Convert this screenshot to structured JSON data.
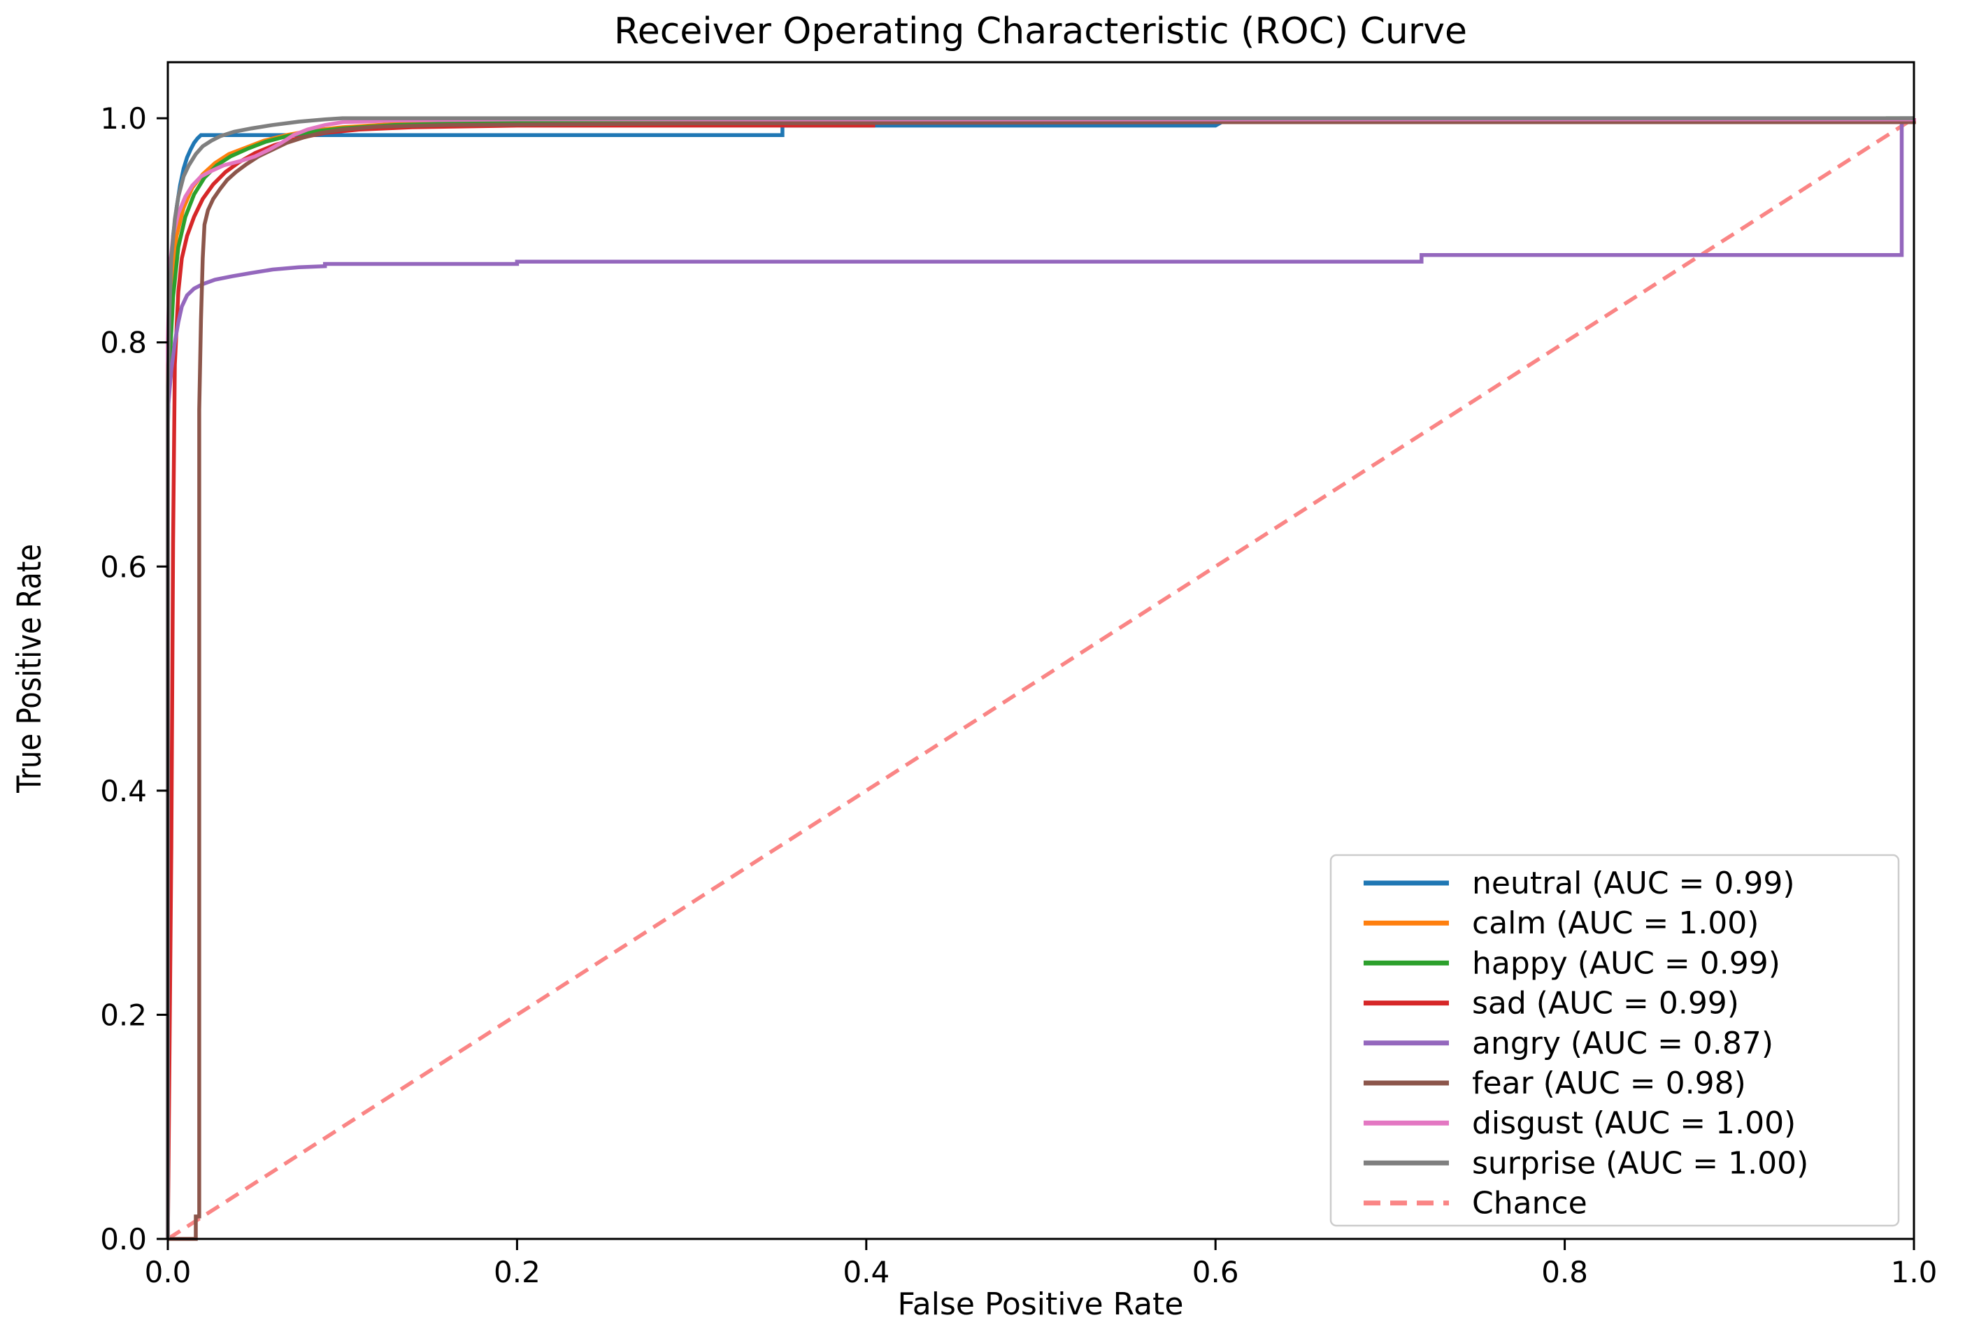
{
  "chart_data": {
    "type": "line",
    "title": "Receiver Operating Characteristic (ROC) Curve",
    "xlabel": "False Positive Rate",
    "ylabel": "True Positive Rate",
    "xlim": [
      0.0,
      1.0
    ],
    "ylim": [
      0.0,
      1.05
    ],
    "x_ticks": [
      "0.0",
      "0.2",
      "0.4",
      "0.6",
      "0.8",
      "1.0"
    ],
    "y_ticks": [
      "0.0",
      "0.2",
      "0.4",
      "0.6",
      "0.8",
      "1.0"
    ],
    "grid": false,
    "legend_position": "lower right",
    "frame_color": "#000000",
    "legend_border_color": "#cccccc",
    "series": [
      {
        "name": "neutral",
        "label": "neutral (AUC = 0.99)",
        "auc": 0.99,
        "color": "#1f77b4",
        "dash": false,
        "points": [
          [
            0,
            0
          ],
          [
            0,
            0.72
          ],
          [
            0.001,
            0.8
          ],
          [
            0.002,
            0.855
          ],
          [
            0.003,
            0.895
          ],
          [
            0.005,
            0.92
          ],
          [
            0.007,
            0.94
          ],
          [
            0.009,
            0.955
          ],
          [
            0.011,
            0.965
          ],
          [
            0.013,
            0.972
          ],
          [
            0.015,
            0.978
          ],
          [
            0.017,
            0.982
          ],
          [
            0.019,
            0.985
          ],
          [
            0.352,
            0.985
          ],
          [
            0.352,
            0.9935
          ],
          [
            0.6,
            0.9935
          ],
          [
            0.604,
            0.997
          ],
          [
            0.985,
            0.997
          ],
          [
            0.985,
            0.999
          ],
          [
            1,
            0.999
          ],
          [
            1,
            1
          ]
        ]
      },
      {
        "name": "calm",
        "label": "calm (AUC = 1.00)",
        "auc": 1.0,
        "color": "#ff7f0e",
        "dash": false,
        "points": [
          [
            0,
            0
          ],
          [
            0,
            0.78
          ],
          [
            0.002,
            0.85
          ],
          [
            0.005,
            0.895
          ],
          [
            0.009,
            0.92
          ],
          [
            0.014,
            0.938
          ],
          [
            0.02,
            0.95
          ],
          [
            0.027,
            0.96
          ],
          [
            0.035,
            0.968
          ],
          [
            0.045,
            0.974
          ],
          [
            0.055,
            0.98
          ],
          [
            0.068,
            0.985
          ],
          [
            0.082,
            0.989
          ],
          [
            0.1,
            0.992
          ],
          [
            0.13,
            0.995
          ],
          [
            0.2,
            0.9965
          ],
          [
            0.4,
            0.997
          ],
          [
            1,
            0.997
          ],
          [
            1,
            1
          ]
        ]
      },
      {
        "name": "happy",
        "label": "happy (AUC = 0.99)",
        "auc": 0.99,
        "color": "#2ca02c",
        "dash": false,
        "points": [
          [
            0,
            0
          ],
          [
            0,
            0.75
          ],
          [
            0.003,
            0.84
          ],
          [
            0.006,
            0.885
          ],
          [
            0.01,
            0.912
          ],
          [
            0.015,
            0.932
          ],
          [
            0.021,
            0.947
          ],
          [
            0.028,
            0.958
          ],
          [
            0.036,
            0.966
          ],
          [
            0.046,
            0.973
          ],
          [
            0.056,
            0.979
          ],
          [
            0.068,
            0.984
          ],
          [
            0.082,
            0.988
          ],
          [
            0.1,
            0.991
          ],
          [
            0.13,
            0.994
          ],
          [
            0.18,
            0.996
          ],
          [
            0.3,
            0.9975
          ],
          [
            0.985,
            0.9975
          ],
          [
            0.985,
            1.0
          ],
          [
            1,
            1
          ]
        ]
      },
      {
        "name": "sad",
        "label": "sad (AUC = 0.99)",
        "auc": 0.99,
        "color": "#d62728",
        "dash": false,
        "points": [
          [
            0,
            0
          ],
          [
            0.002,
            0.35
          ],
          [
            0.003,
            0.62
          ],
          [
            0.004,
            0.78
          ],
          [
            0.006,
            0.845
          ],
          [
            0.008,
            0.875
          ],
          [
            0.011,
            0.895
          ],
          [
            0.015,
            0.912
          ],
          [
            0.02,
            0.928
          ],
          [
            0.026,
            0.941
          ],
          [
            0.033,
            0.952
          ],
          [
            0.041,
            0.961
          ],
          [
            0.05,
            0.969
          ],
          [
            0.061,
            0.976
          ],
          [
            0.074,
            0.982
          ],
          [
            0.09,
            0.987
          ],
          [
            0.11,
            0.99
          ],
          [
            0.14,
            0.992
          ],
          [
            0.2,
            0.9935
          ],
          [
            0.404,
            0.9935
          ],
          [
            0.404,
            0.997
          ],
          [
            0.58,
            0.997
          ],
          [
            0.58,
            0.998
          ],
          [
            0.985,
            0.998
          ],
          [
            1,
            1
          ]
        ]
      },
      {
        "name": "angry",
        "label": "angry (AUC = 0.87)",
        "auc": 0.87,
        "color": "#9467bd",
        "dash": false,
        "points": [
          [
            0,
            0
          ],
          [
            0,
            0.74
          ],
          [
            0.002,
            0.775
          ],
          [
            0.004,
            0.8
          ],
          [
            0.006,
            0.818
          ],
          [
            0.008,
            0.832
          ],
          [
            0.011,
            0.842
          ],
          [
            0.015,
            0.848
          ],
          [
            0.02,
            0.852
          ],
          [
            0.027,
            0.856
          ],
          [
            0.037,
            0.859
          ],
          [
            0.048,
            0.862
          ],
          [
            0.06,
            0.865
          ],
          [
            0.075,
            0.867
          ],
          [
            0.09,
            0.868
          ],
          [
            0.09,
            0.87
          ],
          [
            0.2,
            0.87
          ],
          [
            0.2,
            0.872
          ],
          [
            0.718,
            0.872
          ],
          [
            0.718,
            0.878
          ],
          [
            0.993,
            0.878
          ],
          [
            0.993,
            1.0
          ],
          [
            1,
            1
          ]
        ]
      },
      {
        "name": "fear",
        "label": "fear (AUC = 0.98)",
        "auc": 0.98,
        "color": "#8c564b",
        "dash": false,
        "points": [
          [
            0,
            0
          ],
          [
            0.016,
            0
          ],
          [
            0.016,
            0.02
          ],
          [
            0.018,
            0.02
          ],
          [
            0.018,
            0.74
          ],
          [
            0.019,
            0.82
          ],
          [
            0.02,
            0.875
          ],
          [
            0.021,
            0.905
          ],
          [
            0.023,
            0.918
          ],
          [
            0.026,
            0.928
          ],
          [
            0.03,
            0.937
          ],
          [
            0.034,
            0.945
          ],
          [
            0.039,
            0.952
          ],
          [
            0.045,
            0.959
          ],
          [
            0.052,
            0.966
          ],
          [
            0.06,
            0.972
          ],
          [
            0.068,
            0.978
          ],
          [
            0.078,
            0.983
          ],
          [
            0.088,
            0.987
          ],
          [
            0.1,
            0.99
          ],
          [
            0.12,
            0.9925
          ],
          [
            0.16,
            0.994
          ],
          [
            0.3,
            0.9955
          ],
          [
            0.6,
            0.9965
          ],
          [
            1,
            0.9965
          ],
          [
            1,
            1
          ]
        ]
      },
      {
        "name": "disgust",
        "label": "disgust (AUC = 1.00)",
        "auc": 1.0,
        "color": "#e377c2",
        "dash": false,
        "points": [
          [
            0,
            0
          ],
          [
            0,
            0.8
          ],
          [
            0.001,
            0.865
          ],
          [
            0.003,
            0.895
          ],
          [
            0.006,
            0.915
          ],
          [
            0.01,
            0.93
          ],
          [
            0.014,
            0.94
          ],
          [
            0.019,
            0.948
          ],
          [
            0.025,
            0.953
          ],
          [
            0.032,
            0.958
          ],
          [
            0.042,
            0.962
          ],
          [
            0.05,
            0.966
          ],
          [
            0.058,
            0.972
          ],
          [
            0.065,
            0.978
          ],
          [
            0.072,
            0.985
          ],
          [
            0.08,
            0.99
          ],
          [
            0.09,
            0.994
          ],
          [
            0.1,
            0.9965
          ],
          [
            0.13,
            0.998
          ],
          [
            0.2,
            0.999
          ],
          [
            1,
            0.999
          ],
          [
            1,
            1
          ]
        ]
      },
      {
        "name": "surprise",
        "label": "surprise (AUC = 1.00)",
        "auc": 1.0,
        "color": "#7f7f7f",
        "dash": false,
        "points": [
          [
            0,
            0
          ],
          [
            0,
            0.76
          ],
          [
            0.001,
            0.83
          ],
          [
            0.002,
            0.875
          ],
          [
            0.004,
            0.91
          ],
          [
            0.006,
            0.93
          ],
          [
            0.009,
            0.948
          ],
          [
            0.012,
            0.958
          ],
          [
            0.016,
            0.968
          ],
          [
            0.02,
            0.975
          ],
          [
            0.025,
            0.98
          ],
          [
            0.03,
            0.984
          ],
          [
            0.038,
            0.988
          ],
          [
            0.048,
            0.991
          ],
          [
            0.06,
            0.994
          ],
          [
            0.075,
            0.997
          ],
          [
            0.09,
            0.999
          ],
          [
            0.1,
            1.0
          ],
          [
            1,
            1
          ]
        ]
      },
      {
        "name": "chance",
        "label": "Chance",
        "auc": null,
        "color": "#fa8585",
        "dash": true,
        "points": [
          [
            0,
            0
          ],
          [
            1,
            1
          ]
        ]
      }
    ]
  }
}
